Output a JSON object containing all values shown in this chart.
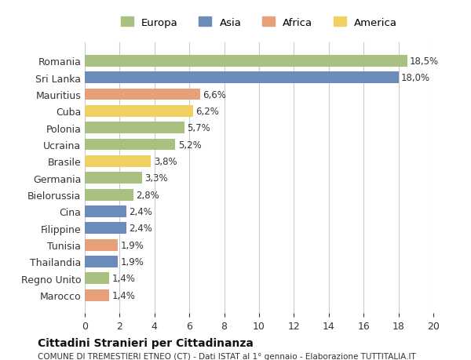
{
  "countries": [
    "Romania",
    "Sri Lanka",
    "Mauritius",
    "Cuba",
    "Polonia",
    "Ucraina",
    "Brasile",
    "Germania",
    "Bielorussia",
    "Cina",
    "Filippine",
    "Tunisia",
    "Thailandia",
    "Regno Unito",
    "Marocco"
  ],
  "values": [
    18.5,
    18.0,
    6.6,
    6.2,
    5.7,
    5.2,
    3.8,
    3.3,
    2.8,
    2.4,
    2.4,
    1.9,
    1.9,
    1.4,
    1.4
  ],
  "labels": [
    "18,5%",
    "18,0%",
    "6,6%",
    "6,2%",
    "5,7%",
    "5,2%",
    "3,8%",
    "3,3%",
    "2,8%",
    "2,4%",
    "2,4%",
    "1,9%",
    "1,9%",
    "1,4%",
    "1,4%"
  ],
  "continents": [
    "Europa",
    "Asia",
    "Africa",
    "America",
    "Europa",
    "Europa",
    "America",
    "Europa",
    "Europa",
    "Asia",
    "Asia",
    "Africa",
    "Asia",
    "Europa",
    "Africa"
  ],
  "colors": {
    "Europa": "#a8c080",
    "Asia": "#6b8cba",
    "Africa": "#e8a07a",
    "America": "#f0d060"
  },
  "legend_order": [
    "Europa",
    "Asia",
    "Africa",
    "America"
  ],
  "xlim": [
    0,
    20
  ],
  "xticks": [
    0,
    2,
    4,
    6,
    8,
    10,
    12,
    14,
    16,
    18,
    20
  ],
  "title": "Cittadini Stranieri per Cittadinanza",
  "subtitle": "COMUNE DI TREMESTIERI ETNEO (CT) - Dati ISTAT al 1° gennaio - Elaborazione TUTTITALIA.IT",
  "background_color": "#ffffff",
  "grid_color": "#cccccc",
  "bar_height": 0.7,
  "fig_width": 6.0,
  "fig_height": 4.6,
  "dpi": 100
}
